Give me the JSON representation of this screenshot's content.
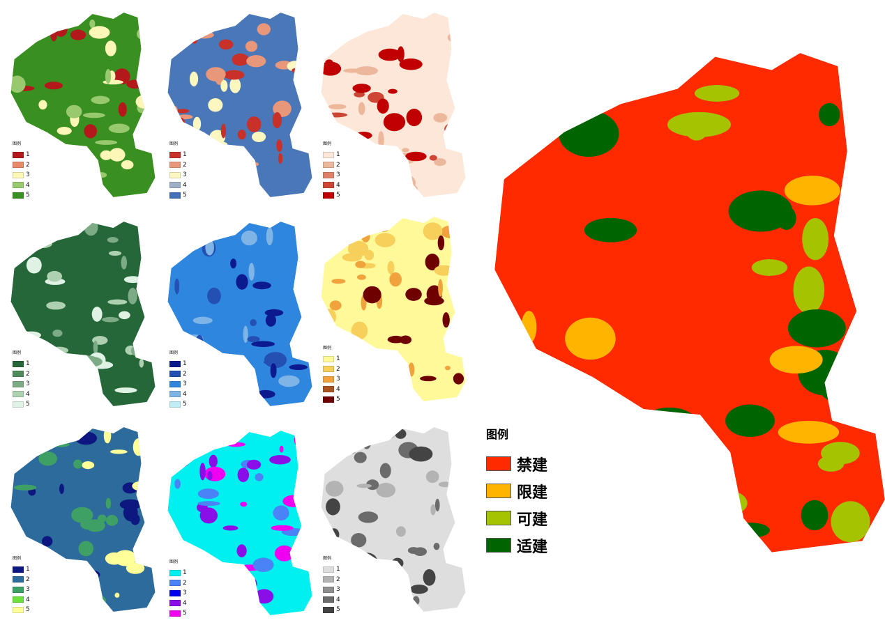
{
  "panels": [
    {
      "legend_title": "图例",
      "items": [
        "1",
        "2",
        "3",
        "4",
        "5"
      ],
      "colors": [
        "#b3181b",
        "#e8896a",
        "#fdf7b7",
        "#98c96e",
        "#3a8f21"
      ],
      "base": "#3a8f21",
      "accent": [
        "#98c96e",
        "#fdf7b7",
        "#b3181b"
      ]
    },
    {
      "legend_title": "图例",
      "items": [
        "1",
        "2",
        "3",
        "4",
        "5"
      ],
      "colors": [
        "#c8302a",
        "#e9977a",
        "#fcf6c0",
        "#9fb0c6",
        "#4471b5"
      ],
      "base": "#4a77b8",
      "accent": [
        "#fcf6c0",
        "#e9977a",
        "#c8302a"
      ]
    },
    {
      "legend_title": "图例",
      "items": [
        "1",
        "2",
        "3",
        "4",
        "5"
      ],
      "colors": [
        "#fde7d8",
        "#edb79c",
        "#de8066",
        "#cd4535",
        "#c00000"
      ],
      "base": "#fde7d8",
      "accent": [
        "#edb79c",
        "#cd4535",
        "#c00000"
      ]
    },
    {
      "legend_title": "图例",
      "items": [
        "1",
        "2",
        "3",
        "4",
        "5"
      ],
      "colors": [
        "#26673a",
        "#4f8a5c",
        "#7dab85",
        "#aed1b2",
        "#dff2e4"
      ],
      "base": "#26673a",
      "accent": [
        "#dff2e4",
        "#aed1b2",
        "#7dab85"
      ]
    },
    {
      "legend_title": "图例",
      "items": [
        "1",
        "2",
        "3",
        "4",
        "5"
      ],
      "colors": [
        "#0c1a8f",
        "#2450b3",
        "#2f86de",
        "#7fb4e6",
        "#c0ecf4"
      ],
      "base": "#2f86de",
      "accent": [
        "#7fb4e6",
        "#2450b3",
        "#0c1a8f"
      ]
    },
    {
      "legend_title": "图例",
      "items": [
        "1",
        "2",
        "3",
        "4",
        "5"
      ],
      "colors": [
        "#fff99a",
        "#f7cf5b",
        "#f0a33c",
        "#a9541e",
        "#6e0000"
      ],
      "base": "#fff99a",
      "accent": [
        "#f7cf5b",
        "#f0a33c",
        "#6e0000"
      ]
    },
    {
      "legend_title": "图例",
      "items": [
        "1",
        "2",
        "3",
        "4",
        "5"
      ],
      "colors": [
        "#0d1780",
        "#2c6b9b",
        "#3fa066",
        "#6ee039",
        "#ffff9a"
      ],
      "base": "#2c6b9b",
      "accent": [
        "#3fa066",
        "#ffff9a",
        "#0d1780"
      ]
    },
    {
      "legend_title": "图例",
      "items": [
        "1",
        "2",
        "3",
        "4",
        "5"
      ],
      "colors": [
        "#00f0f0",
        "#4a83f5",
        "#0000ee",
        "#8a0ee8",
        "#f000f0"
      ],
      "base": "#00f0f0",
      "accent": [
        "#4a83f5",
        "#8a0ee8",
        "#f000f0"
      ]
    },
    {
      "legend_title": "图例",
      "items": [
        "1",
        "2",
        "3",
        "4",
        "5"
      ],
      "colors": [
        "#dedede",
        "#b3b3b3",
        "#8f8f8f",
        "#6b6b6b",
        "#444444"
      ],
      "base": "#dedede",
      "accent": [
        "#b3b3b3",
        "#6b6b6b",
        "#444444"
      ]
    }
  ],
  "main_map": {
    "legend_title": "图例",
    "items": [
      {
        "label": "禁建",
        "color": "#ff2a00"
      },
      {
        "label": "限建",
        "color": "#ffb400"
      },
      {
        "label": "可建",
        "color": "#a5c300"
      },
      {
        "label": "适建",
        "color": "#006400"
      }
    ]
  }
}
